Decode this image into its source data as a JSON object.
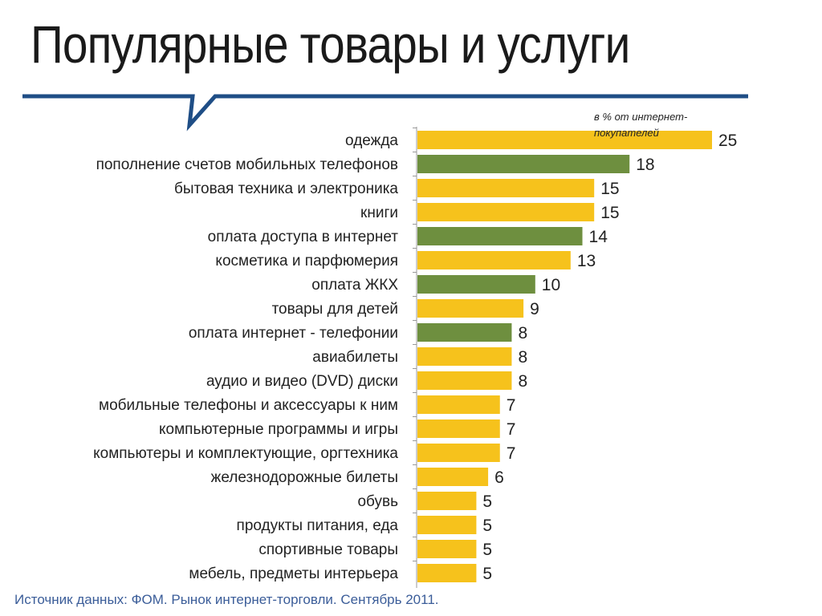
{
  "title": "Популярные товары и услуги",
  "source": "Источник данных: ФОМ. Рынок интернет-торговли. Сентябрь 2011.",
  "colors": {
    "goods": "#f6c21c",
    "services": "#6e8f3f",
    "title_line": "#1f4e86",
    "axis": "#999999",
    "source_text": "#3b5d99"
  },
  "chart_data": {
    "type": "bar",
    "orientation": "horizontal",
    "title": "Популярные товары и услуги",
    "unit_note": "в % от интернет-покупателей",
    "xlim": [
      0,
      25
    ],
    "categories": [
      "одежда",
      "пополнение счетов мобильных телефонов",
      "бытовая техника и электроника",
      "книги",
      "оплата доступа в интернет",
      "косметика и парфюмерия",
      "оплата ЖКХ",
      "товары для детей",
      "оплата интернет - телефонии",
      "авиабилеты",
      "аудио и видео (DVD) диски",
      "мобильные телефоны и аксессуары к ним",
      "компьютерные программы и игры",
      "компьютеры и комплектующие, оргтехника",
      "железнодорожные билеты",
      "обувь",
      "продукты питания, еда",
      "спортивные товары",
      "мебель, предметы интерьера"
    ],
    "values": [
      25,
      18,
      15,
      15,
      14,
      13,
      10,
      9,
      8,
      8,
      8,
      7,
      7,
      7,
      6,
      5,
      5,
      5,
      5
    ],
    "groups": [
      "goods",
      "services",
      "goods",
      "goods",
      "services",
      "goods",
      "services",
      "goods",
      "services",
      "goods",
      "goods",
      "goods",
      "goods",
      "goods",
      "goods",
      "goods",
      "goods",
      "goods",
      "goods"
    ]
  }
}
